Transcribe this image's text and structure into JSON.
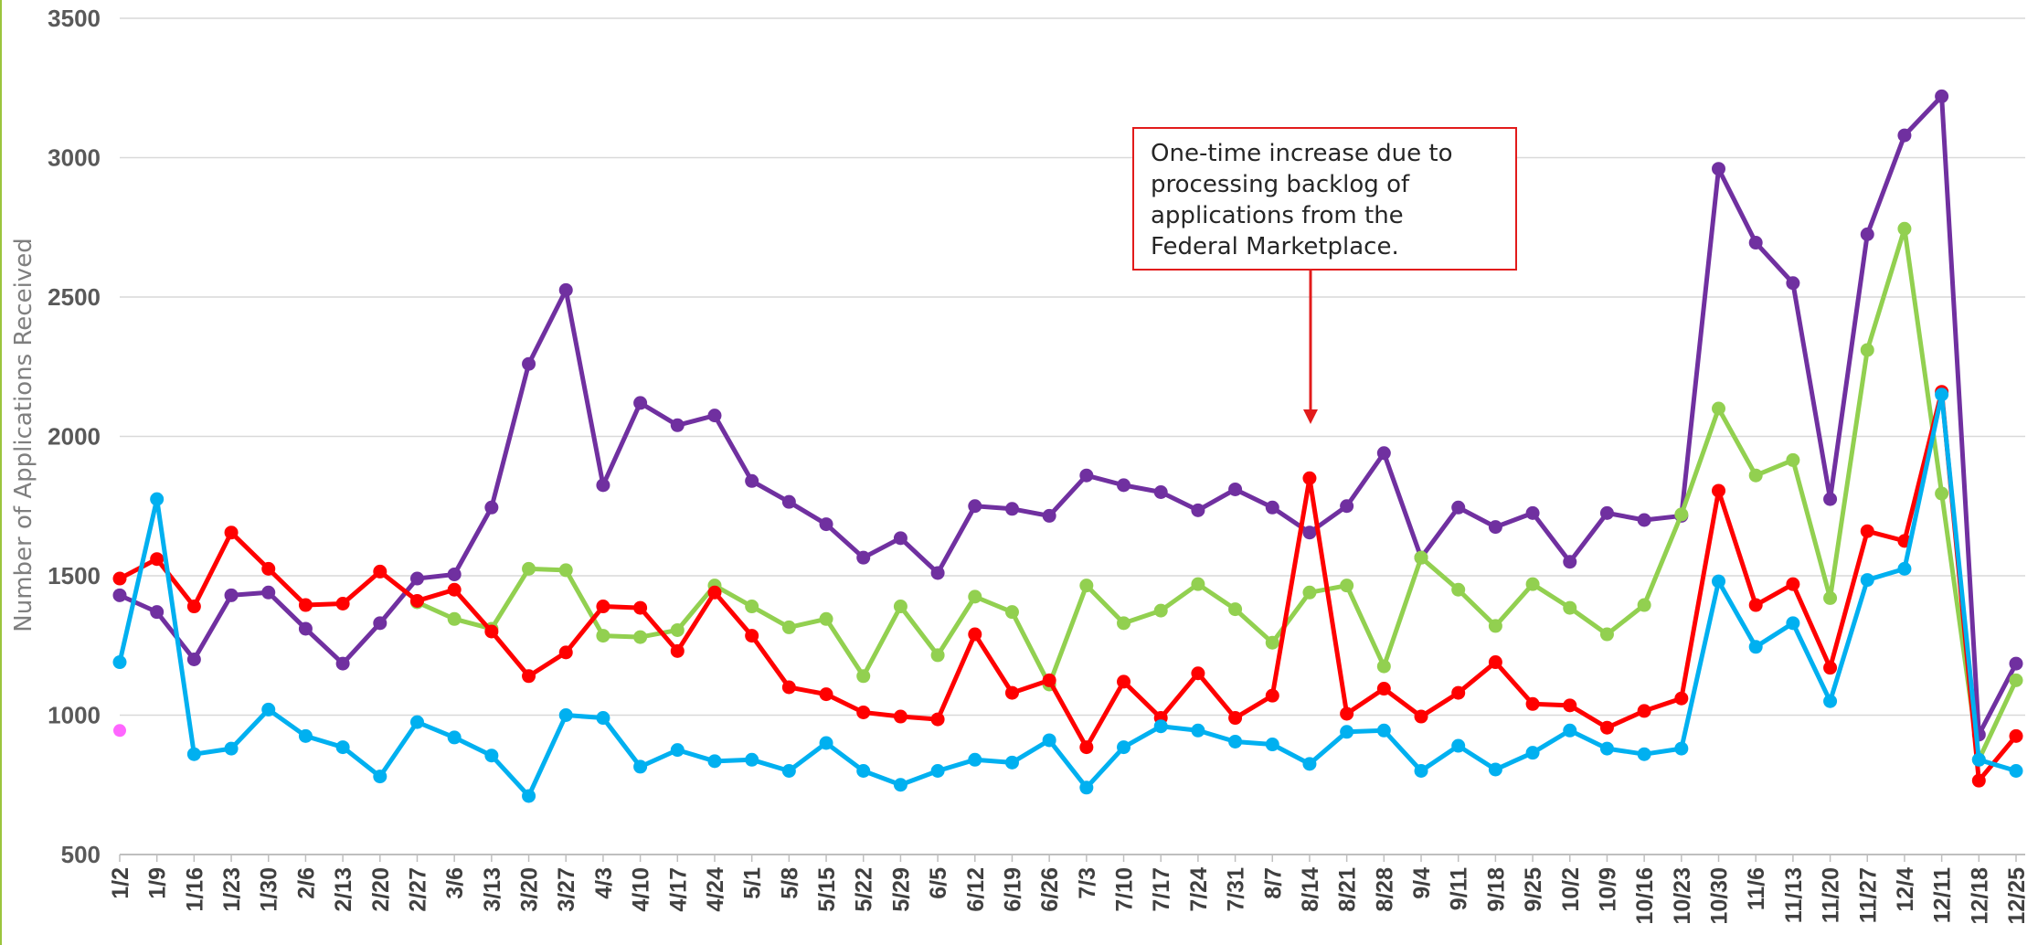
{
  "chart_data": {
    "type": "line",
    "ylabel": "Number of Applications Received",
    "xlabel": "",
    "ylim": [
      500,
      3500
    ],
    "yticks": [
      500,
      1000,
      1500,
      2000,
      2500,
      3000,
      3500
    ],
    "grid": true,
    "categories": [
      "1/2",
      "1/9",
      "1/16",
      "1/23",
      "1/30",
      "2/6",
      "2/13",
      "2/20",
      "2/27",
      "3/6",
      "3/13",
      "3/20",
      "3/27",
      "4/3",
      "4/10",
      "4/17",
      "4/24",
      "5/1",
      "5/8",
      "5/15",
      "5/22",
      "5/29",
      "6/5",
      "6/12",
      "6/19",
      "6/26",
      "7/3",
      "7/10",
      "7/17",
      "7/24",
      "7/31",
      "8/7",
      "8/14",
      "8/21",
      "8/28",
      "9/4",
      "9/11",
      "9/18",
      "9/25",
      "10/2",
      "10/9",
      "10/16",
      "10/23",
      "10/30",
      "11/6",
      "11/13",
      "11/20",
      "11/27",
      "12/4",
      "12/11",
      "12/18",
      "12/25"
    ],
    "series": [
      {
        "color": "#7030a0",
        "values": [
          1430,
          1370,
          1200,
          1430,
          1440,
          1310,
          1185,
          1330,
          1490,
          1505,
          1745,
          2260,
          2525,
          1825,
          2120,
          2040,
          2075,
          1840,
          1765,
          1685,
          1565,
          1635,
          1510,
          1750,
          1740,
          1715,
          1860,
          1825,
          1800,
          1735,
          1810,
          1745,
          1655,
          1750,
          1940,
          1565,
          1745,
          1675,
          1725,
          1550,
          1725,
          1700,
          1715,
          2960,
          2695,
          2550,
          1775,
          2725,
          3080,
          3220,
          930,
          1185
        ]
      },
      {
        "color": "#92d050",
        "values": [
          null,
          null,
          null,
          null,
          null,
          null,
          null,
          null,
          1405,
          1345,
          1310,
          1525,
          1520,
          1285,
          1280,
          1305,
          1465,
          1390,
          1315,
          1345,
          1140,
          1390,
          1215,
          1425,
          1370,
          1110,
          1465,
          1330,
          1375,
          1470,
          1380,
          1260,
          1440,
          1465,
          1175,
          1565,
          1450,
          1320,
          1470,
          1385,
          1290,
          1395,
          1720,
          2100,
          1860,
          1915,
          1420,
          2310,
          2745,
          1795,
          840,
          1125
        ]
      },
      {
        "color": "#ff0000",
        "values": [
          1490,
          1560,
          1390,
          1655,
          1525,
          1395,
          1400,
          1515,
          1410,
          1450,
          1300,
          1140,
          1225,
          1390,
          1385,
          1230,
          1440,
          1285,
          1100,
          1075,
          1010,
          995,
          985,
          1290,
          1080,
          1125,
          885,
          1120,
          990,
          1150,
          990,
          1070,
          1850,
          1005,
          1095,
          995,
          1080,
          1190,
          1040,
          1035,
          955,
          1015,
          1060,
          1805,
          1395,
          1470,
          1170,
          1660,
          1625,
          2160,
          765,
          925
        ]
      },
      {
        "color": "#00b0f0",
        "values": [
          1190,
          1775,
          860,
          880,
          1020,
          925,
          885,
          780,
          975,
          920,
          855,
          710,
          1000,
          990,
          815,
          875,
          835,
          840,
          800,
          900,
          800,
          750,
          800,
          840,
          830,
          910,
          740,
          885,
          960,
          945,
          905,
          895,
          825,
          940,
          945,
          800,
          890,
          805,
          865,
          945,
          880,
          860,
          880,
          1480,
          1245,
          1330,
          1050,
          1485,
          1525,
          2150,
          840,
          800
        ]
      }
    ],
    "stray_point": {
      "x": "1/2",
      "y": 945,
      "color": "#ff66ff"
    },
    "annotation": {
      "lines": [
        "One-time increase due to",
        "processing backlog of",
        "applications from the",
        "Federal Marketplace."
      ],
      "target": "8/14",
      "border_color": "#e21b1b",
      "arrow_color": "#e21b1b"
    }
  }
}
